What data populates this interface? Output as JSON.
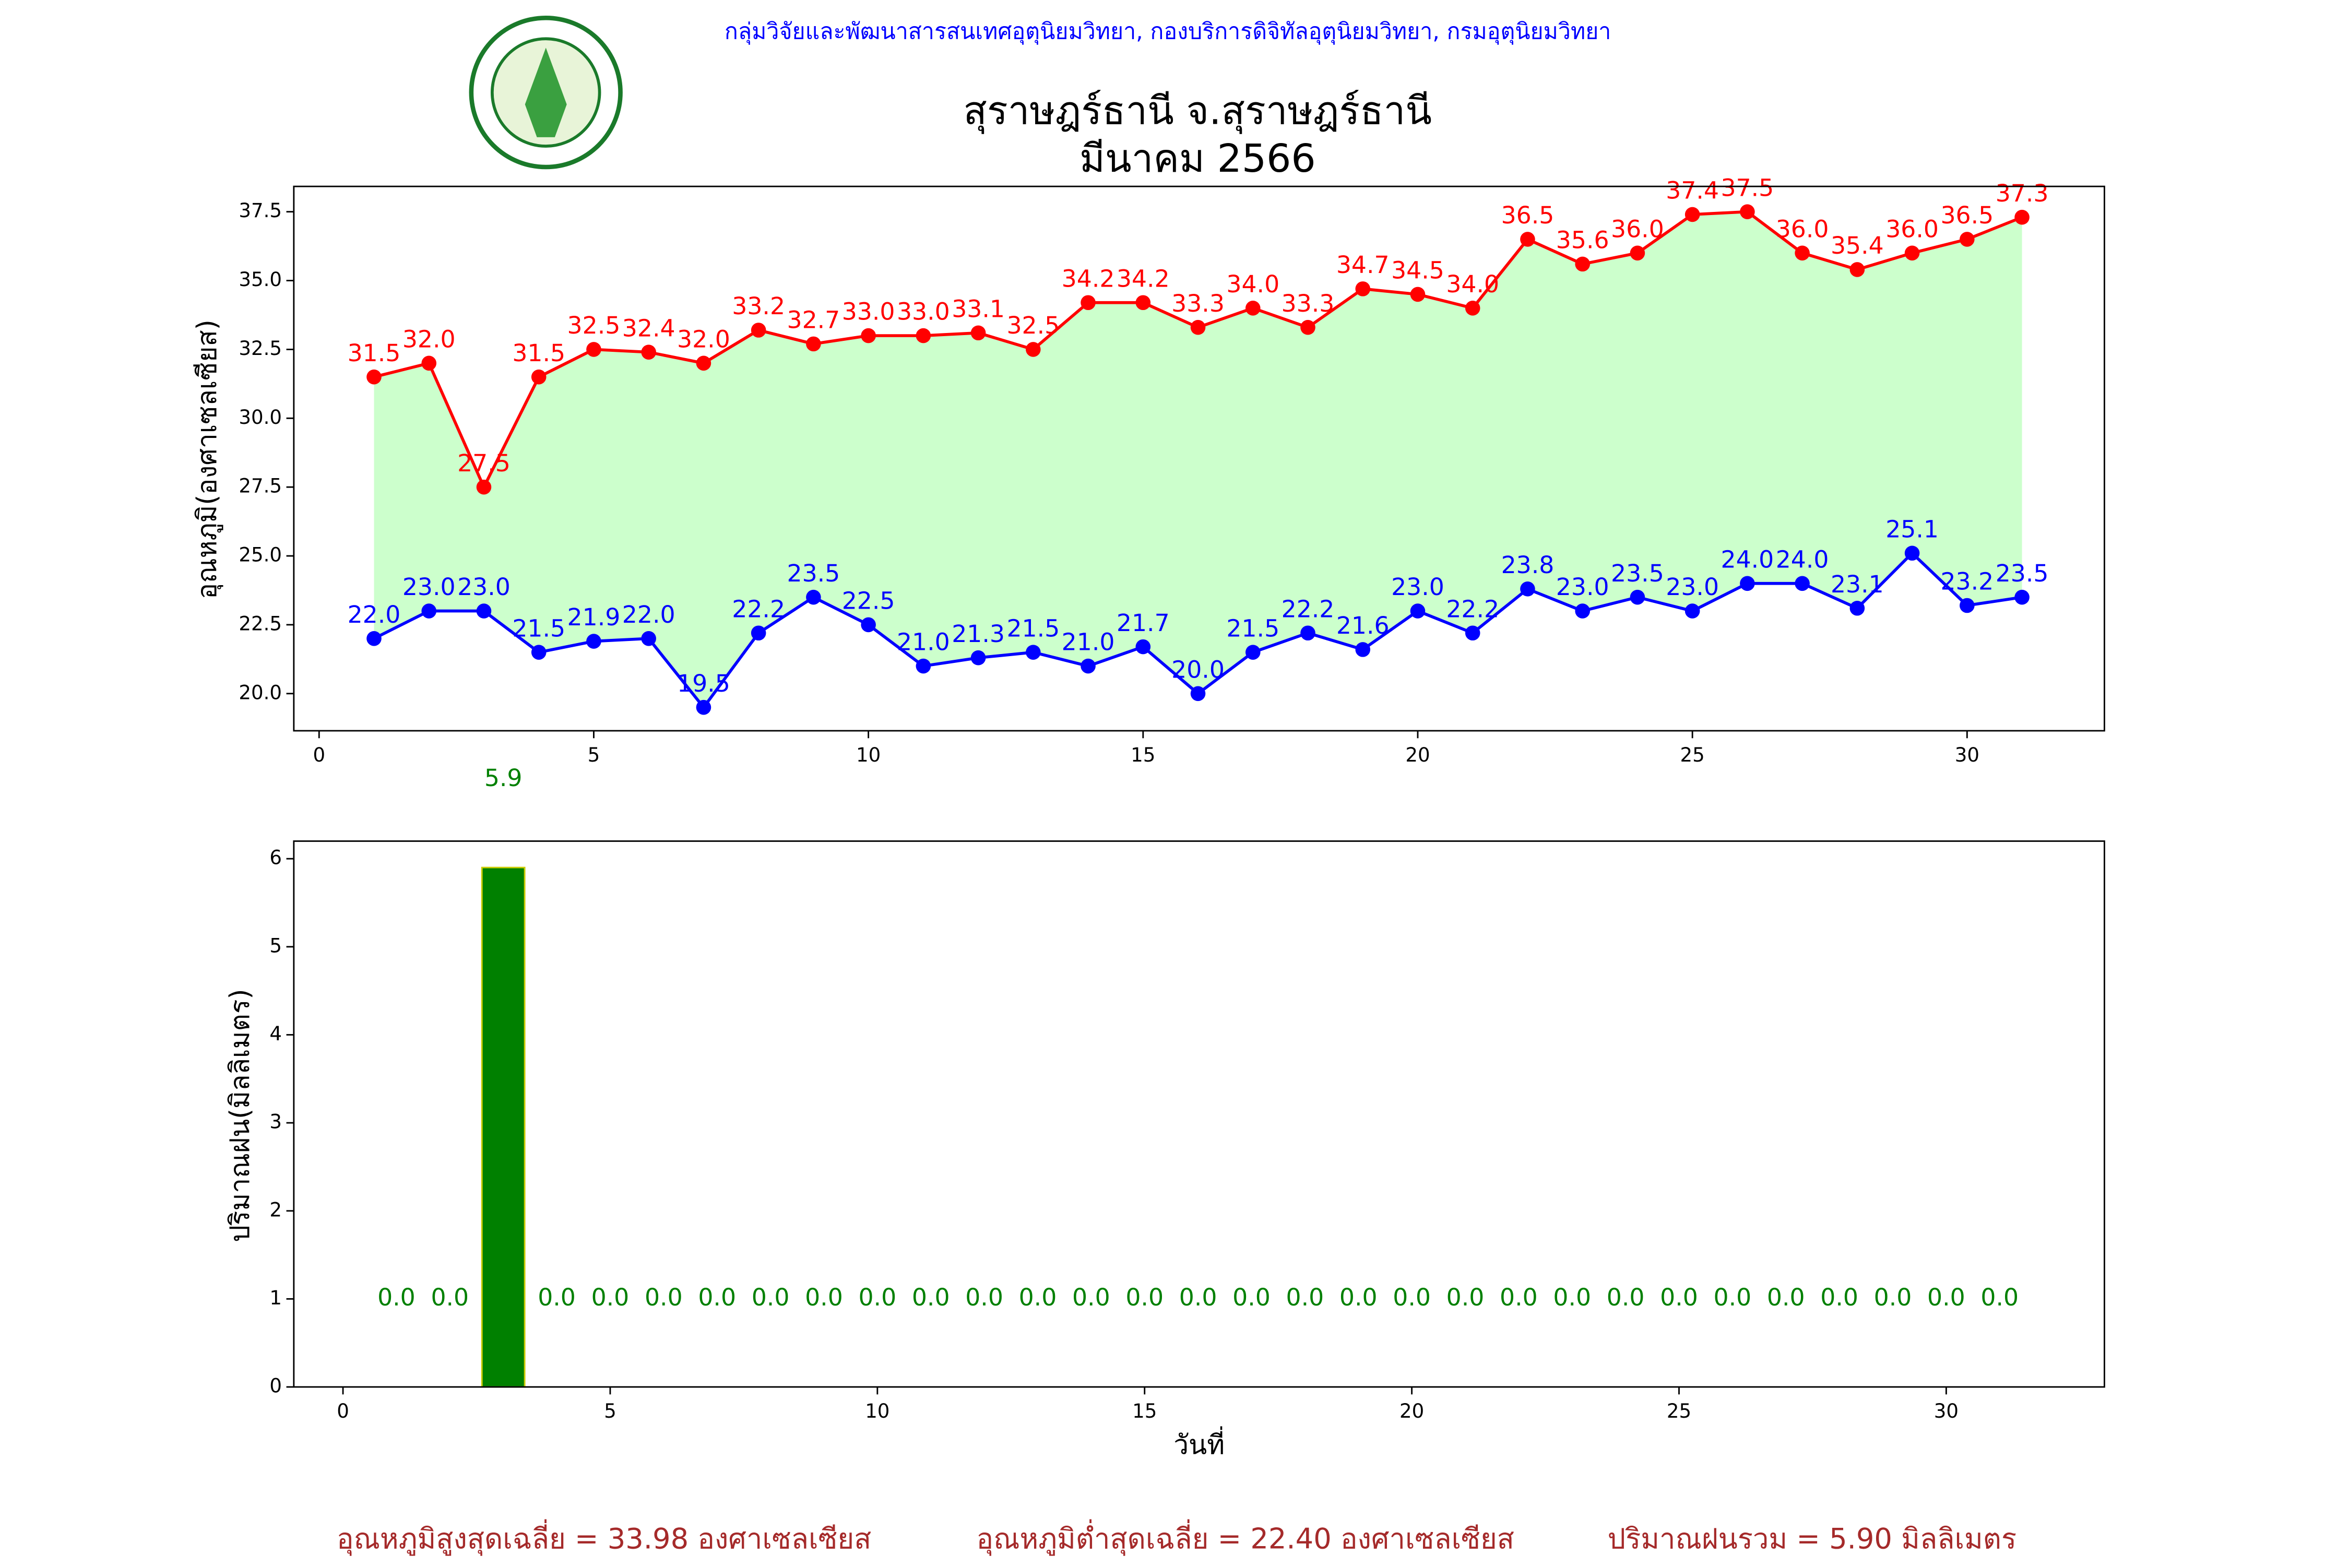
{
  "header": "กลุ่มวิจัยและพัฒนาสารสนเทศอุตุนิยมวิทยา, กองบริการดิจิทัลอุตุนิยมวิทยา, กรมอุตุนิยมวิทยา",
  "footer": [
    "อุณหภูมิสูงสุดเฉลี่ย = 33.98 องศาเซลเซียส",
    "อุณหภูมิต่ำสุดเฉลี่ย = 22.40 องศาเซลเซียส",
    "ปริมาณฝนรวม = 5.90 มิลลิเมตร"
  ],
  "chart_data": [
    {
      "type": "line",
      "title": "สุราษฎร์ธานี จ.สุราษฎร์ธานี",
      "subtitle": "มีนาคม 2566",
      "y_label": "อุณหภูมิ(องศาเซลเซียส)",
      "fill_between": true,
      "fill_color": "#ccffcc",
      "x": [
        1,
        2,
        3,
        4,
        5,
        6,
        7,
        8,
        9,
        10,
        11,
        12,
        13,
        14,
        15,
        16,
        17,
        18,
        19,
        20,
        21,
        22,
        23,
        24,
        25,
        26,
        27,
        28,
        29,
        30,
        31
      ],
      "series": [
        {
          "name": "max",
          "color": "#ff0000",
          "values": [
            31.5,
            32.0,
            27.5,
            31.5,
            32.5,
            32.4,
            32.0,
            33.2,
            32.7,
            33.0,
            33.0,
            33.1,
            32.5,
            34.2,
            34.2,
            33.3,
            34.0,
            33.3,
            34.7,
            34.5,
            34.0,
            36.5,
            35.6,
            36.0,
            37.4,
            37.5,
            36.0,
            35.4,
            36.0,
            36.5,
            37.3
          ],
          "value_labels": [
            "31.5",
            "32.0",
            "27.5",
            "31.5",
            "32.5",
            "32.4",
            "32.0",
            "33.2",
            "32.7",
            "33.0",
            "33.0",
            "33.1",
            "32.5",
            "34.2",
            "34.2",
            "33.3",
            "34.0",
            "33.3",
            "34.7",
            "34.5",
            "34.0",
            "36.5",
            "35.6",
            "36.0",
            "37.4",
            "37.5",
            "36.0",
            "35.4",
            "36.0",
            "36.5",
            "37.3"
          ]
        },
        {
          "name": "min",
          "color": "#0000ff",
          "values": [
            22.0,
            23.0,
            23.0,
            21.5,
            21.9,
            22.0,
            19.5,
            22.2,
            23.5,
            22.5,
            21.0,
            21.3,
            21.5,
            21.0,
            21.7,
            20.0,
            21.5,
            22.2,
            21.6,
            23.0,
            22.2,
            23.8,
            23.0,
            23.5,
            23.0,
            24.0,
            24.0,
            23.1,
            25.1,
            23.2,
            23.5
          ],
          "value_labels": [
            "22.0",
            "23.0",
            "23.0",
            "21.5",
            "21.9",
            "22.0",
            "19.5",
            "22.2",
            "23.5",
            "22.5",
            "21.0",
            "21.3",
            "21.5",
            "21.0",
            "21.7",
            "20.0",
            "21.5",
            "22.2",
            "21.6",
            "23.0",
            "22.2",
            "23.8",
            "23.0",
            "23.5",
            "23.0",
            "24.0",
            "24.0",
            "23.1",
            "25.1",
            "23.2",
            "23.5"
          ]
        }
      ],
      "xlim": [
        -0.46,
        32.5
      ],
      "xticks": [
        0,
        5,
        10,
        15,
        20,
        25,
        30
      ],
      "ylim": [
        18.65,
        38.42
      ],
      "yticks": [
        {
          "value": 20,
          "label": "20.0"
        },
        {
          "value": 22.5,
          "label": "22.5"
        },
        {
          "value": 25,
          "label": "25.0"
        },
        {
          "value": 27.5,
          "label": "27.5"
        },
        {
          "value": 30,
          "label": "30.0"
        },
        {
          "value": 32.5,
          "label": "32.5"
        },
        {
          "value": 35,
          "label": "35.0"
        },
        {
          "value": 37.5,
          "label": "37.5"
        }
      ]
    },
    {
      "type": "bar",
      "x_label": "วันที่",
      "y_label": "ปริมาณฝน(มิลลิเมตร)",
      "color": "#008000",
      "edge_color": "#cccc00",
      "label_color": "#008000",
      "x": [
        1,
        2,
        3,
        4,
        5,
        6,
        7,
        8,
        9,
        10,
        11,
        12,
        13,
        14,
        15,
        16,
        17,
        18,
        19,
        20,
        21,
        22,
        23,
        24,
        25,
        26,
        27,
        28,
        29,
        30,
        31
      ],
      "values": [
        0,
        0,
        5.9,
        0,
        0,
        0,
        0,
        0,
        0,
        0,
        0,
        0,
        0,
        0,
        0,
        0,
        0,
        0,
        0,
        0,
        0,
        0,
        0,
        0,
        0,
        0,
        0,
        0,
        0,
        0,
        0
      ],
      "value_labels": [
        "0.0",
        "0.0",
        "5.9",
        "0.0",
        "0.0",
        "0.0",
        "0.0",
        "0.0",
        "0.0",
        "0.0",
        "0.0",
        "0.0",
        "0.0",
        "0.0",
        "0.0",
        "0.0",
        "0.0",
        "0.0",
        "0.0",
        "0.0",
        "0.0",
        "0.0",
        "0.0",
        "0.0",
        "0.0",
        "0.0",
        "0.0",
        "0.0",
        "0.0",
        "0.0",
        "0.0"
      ],
      "xlim": [
        -0.92,
        32.96
      ],
      "xticks": [
        0,
        5,
        10,
        15,
        20,
        25,
        30
      ],
      "ylim": [
        0,
        6.2
      ],
      "yticks": [
        0,
        1,
        2,
        3,
        4,
        5,
        6
      ]
    }
  ]
}
